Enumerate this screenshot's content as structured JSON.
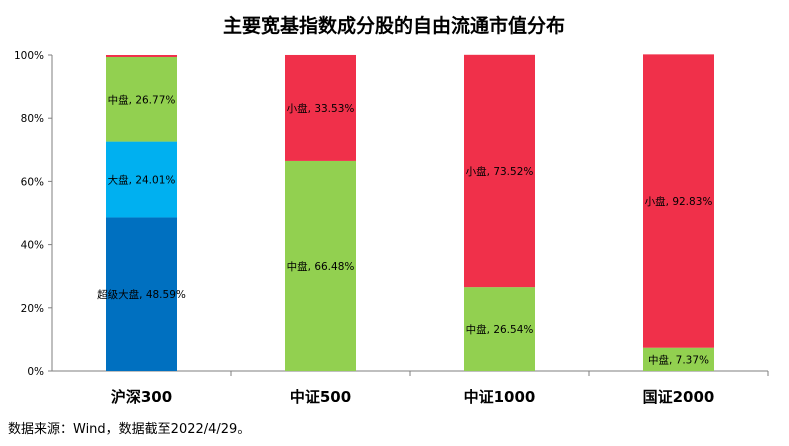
{
  "chart_data": {
    "type": "bar",
    "stacked": true,
    "title": "主要宽基指数成分股的自由流通市值分布",
    "categories": [
      "沪深300",
      "中证500",
      "中证1000",
      "国证2000"
    ],
    "ylim": [
      0,
      100
    ],
    "yticks": [
      "0%",
      "20%",
      "40%",
      "60%",
      "80%",
      "100%"
    ],
    "series": [
      {
        "name": "超级大盘",
        "color": "#0070c0",
        "values": [
          48.59,
          0,
          0,
          0
        ]
      },
      {
        "name": "大盘",
        "color": "#00b0f0",
        "values": [
          24.01,
          0,
          0,
          0
        ]
      },
      {
        "name": "中盘",
        "color": "#92d050",
        "values": [
          26.77,
          66.48,
          26.54,
          7.37
        ]
      },
      {
        "name": "小盘",
        "color": "#f0304a",
        "values": [
          0.63,
          33.53,
          73.52,
          92.83
        ]
      }
    ],
    "data_labels": [
      {
        "category": 0,
        "series": 0,
        "text": "超级大盘, 48.59%"
      },
      {
        "category": 0,
        "series": 1,
        "text": "大盘, 24.01%"
      },
      {
        "category": 0,
        "series": 2,
        "text": "中盘, 26.77%"
      },
      {
        "category": 1,
        "series": 2,
        "text": "中盘, 66.48%"
      },
      {
        "category": 1,
        "series": 3,
        "text": "小盘, 33.53%"
      },
      {
        "category": 2,
        "series": 2,
        "text": "中盘, 26.54%"
      },
      {
        "category": 2,
        "series": 3,
        "text": "小盘, 73.52%"
      },
      {
        "category": 3,
        "series": 2,
        "text": "中盘, 7.37%"
      },
      {
        "category": 3,
        "series": 3,
        "text": "小盘, 92.83%"
      }
    ]
  },
  "source": "数据来源：Wind，数据截至2022/4/29。"
}
